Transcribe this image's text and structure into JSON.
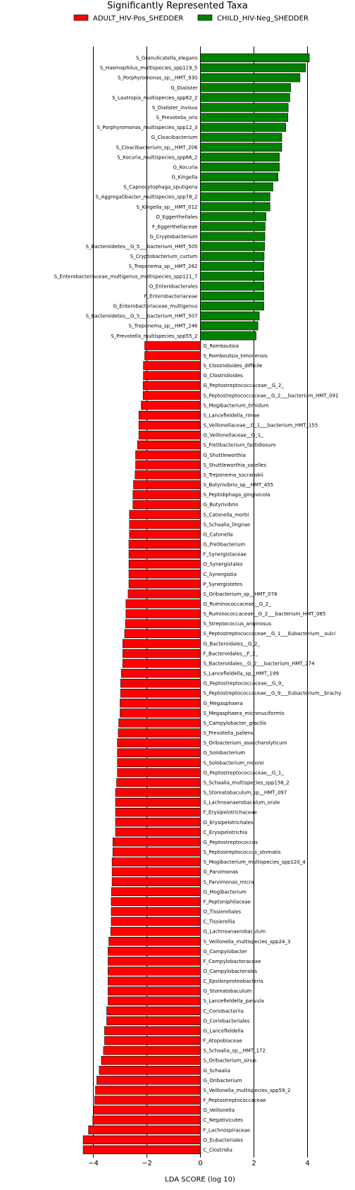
{
  "chart_data": {
    "type": "bar",
    "orientation": "horizontal",
    "title": "Significantly Represented Taxa",
    "xlabel": "LDA SCORE (log 10)",
    "ylabel": "",
    "xlim": [
      -4.5,
      4.5
    ],
    "xticks": [
      -4,
      -2,
      0,
      2,
      4
    ],
    "grid": "vertical lines at ticks",
    "legend": {
      "position": "top-center"
    },
    "series": [
      {
        "name": "ADULT_HIV-Pos_SHEDDER",
        "color": "#ff0000"
      },
      {
        "name": "CHILD_HIV-Neg_SHEDDER",
        "color": "#008000"
      }
    ],
    "bars": [
      {
        "label": "S_Granulicatella_elegans",
        "value": 4.07,
        "group": 1
      },
      {
        "label": "S_Haemophilus_multispecies_spp119_5",
        "value": 3.93,
        "group": 1
      },
      {
        "label": "S_Porphyromonas_sp__HMT_930",
        "value": 3.72,
        "group": 1
      },
      {
        "label": "G_Dialister",
        "value": 3.37,
        "group": 1
      },
      {
        "label": "S_Lautropia_multispecies_spp82_2",
        "value": 3.34,
        "group": 1
      },
      {
        "label": "S_Dialister_invisus",
        "value": 3.28,
        "group": 1
      },
      {
        "label": "S_Prevotella_oris",
        "value": 3.27,
        "group": 1
      },
      {
        "label": "S_Porphyromonas_multispecies_spp12_3",
        "value": 3.19,
        "group": 1
      },
      {
        "label": "G_Cloacibacterium",
        "value": 3.04,
        "group": 1
      },
      {
        "label": "S_Cloacibacterium_sp__HMT_206",
        "value": 3.04,
        "group": 1
      },
      {
        "label": "S_Kocuria_multispecies_spp66_2",
        "value": 2.95,
        "group": 1
      },
      {
        "label": "G_Kocuria",
        "value": 2.95,
        "group": 1
      },
      {
        "label": "G_Kingella",
        "value": 2.9,
        "group": 1
      },
      {
        "label": "S_Capnocytophaga_sputigena",
        "value": 2.71,
        "group": 1
      },
      {
        "label": "S_Aggregatibacter_multispecies_spp78_2",
        "value": 2.6,
        "group": 1
      },
      {
        "label": "S_Kingella_sp__HMT_012",
        "value": 2.6,
        "group": 1
      },
      {
        "label": "O_Eggerthellales",
        "value": 2.45,
        "group": 1
      },
      {
        "label": "F_Eggerthellaceae",
        "value": 2.42,
        "group": 1
      },
      {
        "label": "G_Cryptobacterium",
        "value": 2.41,
        "group": 1
      },
      {
        "label": "S_Bacteroidetes__G_5___bacterium_HMT_505",
        "value": 2.4,
        "group": 1
      },
      {
        "label": "S_Cryptobacterium_curtum",
        "value": 2.38,
        "group": 1
      },
      {
        "label": "S_Treponema_sp__HMT_262",
        "value": 2.37,
        "group": 1
      },
      {
        "label": "S_Enterobacteriaceae_multigenus_multispecies_spp121_7",
        "value": 2.37,
        "group": 1
      },
      {
        "label": "O_Enterobacterales",
        "value": 2.37,
        "group": 1
      },
      {
        "label": "F_Enterobacteriaceae",
        "value": 2.37,
        "group": 1
      },
      {
        "label": "G_Enterobacteriaceae_multigenus",
        "value": 2.37,
        "group": 1
      },
      {
        "label": "S_Bacteroidetes__G_5___bacterium_HMT_507",
        "value": 2.2,
        "group": 1
      },
      {
        "label": "S_Treponema_sp__HMT_246",
        "value": 2.15,
        "group": 1
      },
      {
        "label": "S_Prevotella_multispecies_spp55_2",
        "value": 2.08,
        "group": 1
      },
      {
        "label": "G_Romboutsia",
        "value": -2.08,
        "group": 0
      },
      {
        "label": "S_Romboutsia_timonensis",
        "value": -2.08,
        "group": 0
      },
      {
        "label": "S_Clostridioides_difficile",
        "value": -2.13,
        "group": 0
      },
      {
        "label": "G_Clostridioides",
        "value": -2.13,
        "group": 0
      },
      {
        "label": "G_Peptostreptococcaceae__G_2_",
        "value": -2.14,
        "group": 0
      },
      {
        "label": "S_Peptostreptococcaceae__G_2___bacterium_HMT_091",
        "value": -2.14,
        "group": 0
      },
      {
        "label": "S_Mogibacterium_timidum",
        "value": -2.21,
        "group": 0
      },
      {
        "label": "S_Lancefieldella_rimae",
        "value": -2.3,
        "group": 0
      },
      {
        "label": "S_Veillonellaceae__G_1___bacterium_HMT_155",
        "value": -2.3,
        "group": 0
      },
      {
        "label": "G_Veillonellaceae__G_1_",
        "value": -2.3,
        "group": 0
      },
      {
        "label": "S_Fretibacterium_fastidiosum",
        "value": -2.35,
        "group": 0
      },
      {
        "label": "G_Shuttleworthia",
        "value": -2.42,
        "group": 0
      },
      {
        "label": "S_Shuttleworthia_satelles",
        "value": -2.42,
        "group": 0
      },
      {
        "label": "S_Treponema_socranskii",
        "value": -2.44,
        "group": 0
      },
      {
        "label": "S_Butyrivibrio_sp__HMT_455",
        "value": -2.5,
        "group": 0
      },
      {
        "label": "S_Peptidiphaga_gingivicola",
        "value": -2.52,
        "group": 0
      },
      {
        "label": "G_Butyrivibrio",
        "value": -2.52,
        "group": 0
      },
      {
        "label": "S_Catonella_morbi",
        "value": -2.65,
        "group": 0
      },
      {
        "label": "S_Schaalia_lingnae",
        "value": -2.65,
        "group": 0
      },
      {
        "label": "G_Catonella",
        "value": -2.65,
        "group": 0
      },
      {
        "label": "G_Fretibacterium",
        "value": -2.67,
        "group": 0
      },
      {
        "label": "F_Synergistaceae",
        "value": -2.67,
        "group": 0
      },
      {
        "label": "O_Synergistales",
        "value": -2.67,
        "group": 0
      },
      {
        "label": "C_Synergistia",
        "value": -2.67,
        "group": 0
      },
      {
        "label": "P_Synergistetes",
        "value": -2.67,
        "group": 0
      },
      {
        "label": "S_Oribacterium_sp__HMT_078",
        "value": -2.7,
        "group": 0
      },
      {
        "label": "G_Ruminococcaceae__G_2_",
        "value": -2.78,
        "group": 0
      },
      {
        "label": "S_Ruminococcaceae__G_2___bacterium_HMT_085",
        "value": -2.78,
        "group": 0
      },
      {
        "label": "S_Streptococcus_anginosus",
        "value": -2.8,
        "group": 0
      },
      {
        "label": "S_Peptostreptococcaceae__G_1___Eubacterium__sulci",
        "value": -2.83,
        "group": 0
      },
      {
        "label": "G_Bacteroidales__G_2_",
        "value": -2.9,
        "group": 0
      },
      {
        "label": "F_Bacteroidales__F_2_",
        "value": -2.9,
        "group": 0
      },
      {
        "label": "S_Bacteroidales__G_2___bacterium_HMT_274",
        "value": -2.9,
        "group": 0
      },
      {
        "label": "S_Lancefieldella_sp__HMT_199",
        "value": -2.95,
        "group": 0
      },
      {
        "label": "G_Peptostreptococcaceae__G_9_",
        "value": -2.98,
        "group": 0
      },
      {
        "label": "S_Peptostreptococcaceae__G_9___Eubacterium__brachy",
        "value": -2.98,
        "group": 0
      },
      {
        "label": "G_Megasphaera",
        "value": -3.0,
        "group": 0
      },
      {
        "label": "S_Megasphaera_micronuciformis",
        "value": -3.0,
        "group": 0
      },
      {
        "label": "S_Campylobacter_gracilis",
        "value": -3.05,
        "group": 0
      },
      {
        "label": "S_Prevotella_pallens",
        "value": -3.07,
        "group": 0
      },
      {
        "label": "S_Oribacterium_asaccharolyticum",
        "value": -3.1,
        "group": 0
      },
      {
        "label": "G_Solobacterium",
        "value": -3.1,
        "group": 0
      },
      {
        "label": "S_Solobacterium_moorei",
        "value": -3.1,
        "group": 0
      },
      {
        "label": "G_Peptostreptococcaceae__G_1_",
        "value": -3.1,
        "group": 0
      },
      {
        "label": "S_Schaalia_multispecies_spp158_2",
        "value": -3.13,
        "group": 0
      },
      {
        "label": "S_Stomatobaculum_sp__HMT_097",
        "value": -3.17,
        "group": 0
      },
      {
        "label": "S_Lachnoanaerobaculum_orale",
        "value": -3.17,
        "group": 0
      },
      {
        "label": "F_Erysipelotrichaceae",
        "value": -3.17,
        "group": 0
      },
      {
        "label": "O_Erysipelotrichales",
        "value": -3.17,
        "group": 0
      },
      {
        "label": "C_Erysipelotrichia",
        "value": -3.17,
        "group": 0
      },
      {
        "label": "G_Peptostreptococcus",
        "value": -3.27,
        "group": 0
      },
      {
        "label": "S_Peptostreptococcus_stomatis",
        "value": -3.27,
        "group": 0
      },
      {
        "label": "S_Mogibacterium_multispecies_spp120_4",
        "value": -3.3,
        "group": 0
      },
      {
        "label": "G_Parvimonas",
        "value": -3.3,
        "group": 0
      },
      {
        "label": "S_Parvimonas_micra",
        "value": -3.3,
        "group": 0
      },
      {
        "label": "G_Mogibacterium",
        "value": -3.32,
        "group": 0
      },
      {
        "label": "F_Peptoniphilaceae",
        "value": -3.33,
        "group": 0
      },
      {
        "label": "O_Tissierellales",
        "value": -3.33,
        "group": 0
      },
      {
        "label": "C_Tissierellia",
        "value": -3.33,
        "group": 0
      },
      {
        "label": "G_Lachnoanaerobaculum",
        "value": -3.35,
        "group": 0
      },
      {
        "label": "S_Veillonella_multispecies_spp24_3",
        "value": -3.42,
        "group": 0
      },
      {
        "label": "G_Campylobacter",
        "value": -3.45,
        "group": 0
      },
      {
        "label": "F_Campylobacteraceae",
        "value": -3.45,
        "group": 0
      },
      {
        "label": "O_Campylobacterales",
        "value": -3.45,
        "group": 0
      },
      {
        "label": "C_Epsilonproteobacteria",
        "value": -3.45,
        "group": 0
      },
      {
        "label": "G_Stomatobaculum",
        "value": -3.45,
        "group": 0
      },
      {
        "label": "S_Lancefieldella_parvula",
        "value": -3.45,
        "group": 0
      },
      {
        "label": "C_Coriobacteriia",
        "value": -3.5,
        "group": 0
      },
      {
        "label": "O_Coriobacteriales",
        "value": -3.5,
        "group": 0
      },
      {
        "label": "G_Lancefieldella",
        "value": -3.58,
        "group": 0
      },
      {
        "label": "F_Atopobiaceae",
        "value": -3.58,
        "group": 0
      },
      {
        "label": "S_Schaalia_sp__HMT_172",
        "value": -3.62,
        "group": 0
      },
      {
        "label": "S_Oribacterium_sinus",
        "value": -3.7,
        "group": 0
      },
      {
        "label": "G_Schaalia",
        "value": -3.78,
        "group": 0
      },
      {
        "label": "G_Oribacterium",
        "value": -3.87,
        "group": 0
      },
      {
        "label": "S_Veillonella_multispecies_spp59_2",
        "value": -3.92,
        "group": 0
      },
      {
        "label": "F_Peptostreptococcaceae",
        "value": -3.95,
        "group": 0
      },
      {
        "label": "G_Veillonella",
        "value": -4.0,
        "group": 0
      },
      {
        "label": "C_Negativicutes",
        "value": -4.02,
        "group": 0
      },
      {
        "label": "F_Lachnospiraceae",
        "value": -4.18,
        "group": 0
      },
      {
        "label": "O_Eubacteriales",
        "value": -4.38,
        "group": 0
      },
      {
        "label": "C_Clostridia",
        "value": -4.38,
        "group": 0
      }
    ]
  }
}
